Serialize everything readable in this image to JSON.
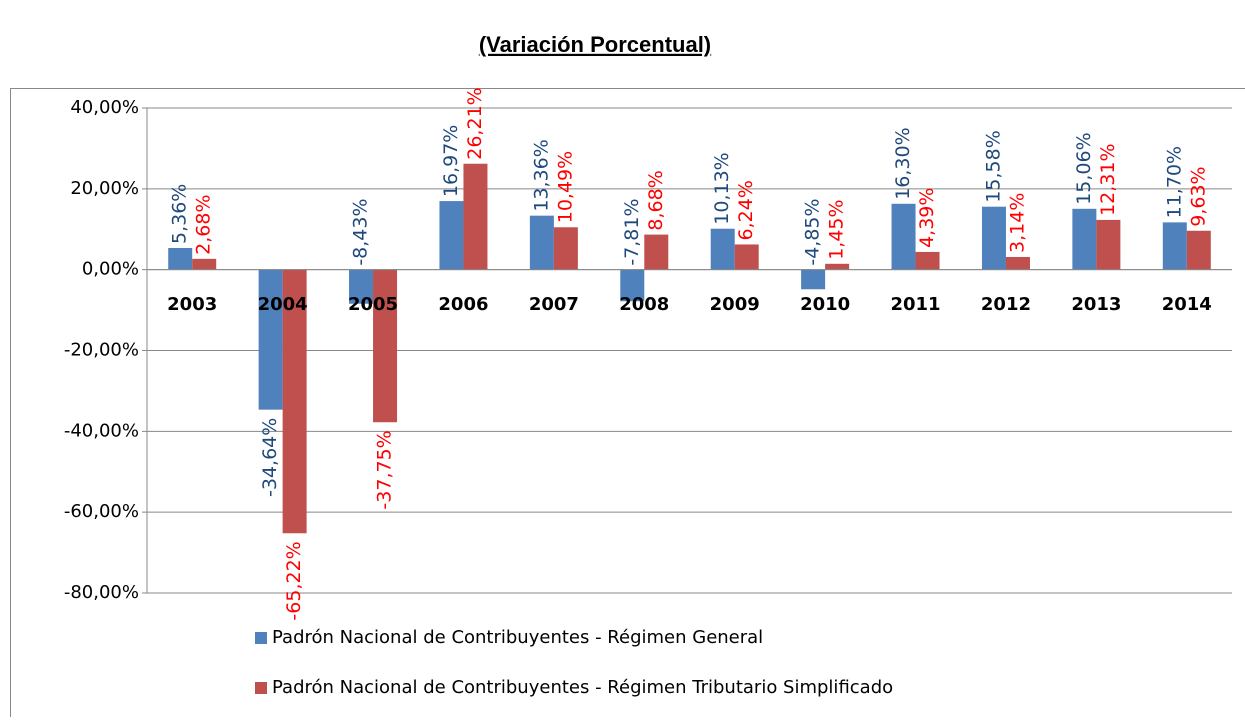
{
  "chart_data": {
    "type": "bar",
    "title": "(Variación Porcentual)",
    "categories": [
      "2003",
      "2004",
      "2005",
      "2006",
      "2007",
      "2008",
      "2009",
      "2010",
      "2011",
      "2012",
      "2013",
      "2014"
    ],
    "series": [
      {
        "name": "Padrón Nacional de Contribuyentes - Régimen General",
        "color": "#4f81bd",
        "label_color": "#1f497d",
        "values": [
          5.36,
          -34.64,
          -8.43,
          16.97,
          13.36,
          -7.81,
          10.13,
          -4.85,
          16.3,
          15.58,
          15.06,
          11.7
        ],
        "value_labels": [
          "5,36%",
          "-34,64%",
          "-8,43%",
          "16,97%",
          "13,36%",
          "-7,81%",
          "10,13%",
          "-4,85%",
          "16,30%",
          "15,58%",
          "15,06%",
          "11,70%"
        ]
      },
      {
        "name": "Padrón Nacional de Contribuyentes - Régimen Tributario Simplificado",
        "color": "#c0504d",
        "label_color": "#ff0000",
        "values": [
          2.68,
          -65.22,
          -37.75,
          26.21,
          10.49,
          8.68,
          6.24,
          1.45,
          4.39,
          3.14,
          12.31,
          9.63
        ],
        "value_labels": [
          "2,68%",
          "-65,22%",
          "-37,75%",
          "26,21%",
          "10,49%",
          "8,68%",
          "6,24%",
          "1,45%",
          "4,39%",
          "3,14%",
          "12,31%",
          "9,63%"
        ]
      }
    ],
    "ylim": [
      -80,
      40
    ],
    "yticks": [
      {
        "value": 40,
        "label": "40,00%"
      },
      {
        "value": 20,
        "label": "20,00%"
      },
      {
        "value": 0,
        "label": "0,00%"
      },
      {
        "value": -20,
        "label": "-20,00%"
      },
      {
        "value": -40,
        "label": "-40,00%"
      },
      {
        "value": -60,
        "label": "-60,00%"
      },
      {
        "value": -80,
        "label": "-80,00%"
      }
    ],
    "grid": true,
    "legend": "bottom"
  }
}
